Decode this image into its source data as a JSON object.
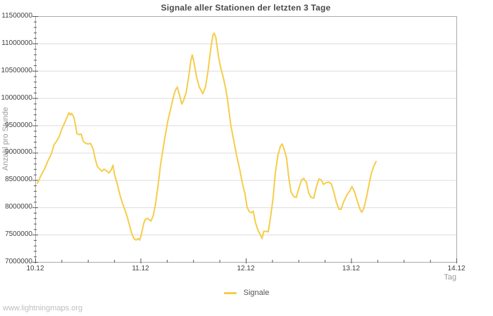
{
  "title": "Signale aller Stationen der letzten 3 Tage",
  "watermark": "www.lightningmaps.org",
  "legend": {
    "position": "bottom-center",
    "items": [
      {
        "label": "Signale",
        "color": "#f5cd4a"
      }
    ]
  },
  "colors": {
    "background": "#ffffff",
    "series": "#f5cd4a",
    "gridline": "#dcdcdc",
    "border": "#aaaaaa",
    "tick": "#555555",
    "tick_label": "#3f3f3f",
    "title": "#4a4a4a",
    "axis_title": "#9a9a9a",
    "watermark": "#bdbdbd"
  },
  "chart_data": {
    "type": "line",
    "title": "Signale aller Stationen der letzten 3 Tage",
    "xlabel": "Tag",
    "ylabel": "Anzahl pro Stunde",
    "x_unit": "hours since 10.12 00:00",
    "xlim": [
      0,
      96
    ],
    "ylim": [
      7000000,
      11500000
    ],
    "grid": "horizontal-only",
    "legend_position": "bottom-center",
    "x_ticks": [
      {
        "pos": 0,
        "label": "10.12"
      },
      {
        "pos": 24,
        "label": "11.12"
      },
      {
        "pos": 48,
        "label": "12.12"
      },
      {
        "pos": 72,
        "label": "13.12"
      },
      {
        "pos": 96,
        "label": "14.12"
      }
    ],
    "x_minor_step": 6,
    "y_major_step": 500000,
    "y_minor_step": 100000,
    "series": [
      {
        "name": "Signale",
        "color": "#f5cd4a",
        "points": [
          [
            0.5,
            8440000
          ],
          [
            1.3,
            8580000
          ],
          [
            2.1,
            8700000
          ],
          [
            2.9,
            8850000
          ],
          [
            3.7,
            8980000
          ],
          [
            4.3,
            9150000
          ],
          [
            4.8,
            9200000
          ],
          [
            5.4,
            9280000
          ],
          [
            6.1,
            9440000
          ],
          [
            6.9,
            9580000
          ],
          [
            7.4,
            9680000
          ],
          [
            7.7,
            9730000
          ],
          [
            8.0,
            9690000
          ],
          [
            8.3,
            9720000
          ],
          [
            8.8,
            9650000
          ],
          [
            9.2,
            9500000
          ],
          [
            9.5,
            9350000
          ],
          [
            10.0,
            9330000
          ],
          [
            10.5,
            9340000
          ],
          [
            10.9,
            9220000
          ],
          [
            11.3,
            9180000
          ],
          [
            12.0,
            9160000
          ],
          [
            12.6,
            9170000
          ],
          [
            13.2,
            9070000
          ],
          [
            13.7,
            8880000
          ],
          [
            14.2,
            8740000
          ],
          [
            14.7,
            8700000
          ],
          [
            15.2,
            8660000
          ],
          [
            15.7,
            8700000
          ],
          [
            16.2,
            8670000
          ],
          [
            16.8,
            8630000
          ],
          [
            17.3,
            8680000
          ],
          [
            17.7,
            8770000
          ],
          [
            18.1,
            8600000
          ],
          [
            18.7,
            8430000
          ],
          [
            19.3,
            8230000
          ],
          [
            19.9,
            8070000
          ],
          [
            20.5,
            7940000
          ],
          [
            21.0,
            7820000
          ],
          [
            21.5,
            7670000
          ],
          [
            22.0,
            7520000
          ],
          [
            22.5,
            7430000
          ],
          [
            23.0,
            7400000
          ],
          [
            23.4,
            7430000
          ],
          [
            23.8,
            7400000
          ],
          [
            24.2,
            7500000
          ],
          [
            24.7,
            7700000
          ],
          [
            25.1,
            7780000
          ],
          [
            25.6,
            7800000
          ],
          [
            26.0,
            7770000
          ],
          [
            26.4,
            7750000
          ],
          [
            26.9,
            7850000
          ],
          [
            27.4,
            8050000
          ],
          [
            28.0,
            8400000
          ],
          [
            28.6,
            8800000
          ],
          [
            29.4,
            9200000
          ],
          [
            30.2,
            9570000
          ],
          [
            31.0,
            9850000
          ],
          [
            31.6,
            10050000
          ],
          [
            32.0,
            10150000
          ],
          [
            32.4,
            10200000
          ],
          [
            33.0,
            10020000
          ],
          [
            33.4,
            9890000
          ],
          [
            33.8,
            9950000
          ],
          [
            34.4,
            10100000
          ],
          [
            35.0,
            10400000
          ],
          [
            35.5,
            10700000
          ],
          [
            35.8,
            10790000
          ],
          [
            36.2,
            10650000
          ],
          [
            36.8,
            10380000
          ],
          [
            37.4,
            10200000
          ],
          [
            38.2,
            10080000
          ],
          [
            38.8,
            10200000
          ],
          [
            39.4,
            10500000
          ],
          [
            40.0,
            10900000
          ],
          [
            40.5,
            11150000
          ],
          [
            40.8,
            11190000
          ],
          [
            41.2,
            11100000
          ],
          [
            41.8,
            10750000
          ],
          [
            42.3,
            10550000
          ],
          [
            42.9,
            10370000
          ],
          [
            43.4,
            10180000
          ],
          [
            43.8,
            10000000
          ],
          [
            44.6,
            9500000
          ],
          [
            45.3,
            9200000
          ],
          [
            45.9,
            8950000
          ],
          [
            46.6,
            8700000
          ],
          [
            47.2,
            8450000
          ],
          [
            47.8,
            8250000
          ],
          [
            48.3,
            8000000
          ],
          [
            48.8,
            7920000
          ],
          [
            49.3,
            7900000
          ],
          [
            49.7,
            7930000
          ],
          [
            50.2,
            7720000
          ],
          [
            50.8,
            7580000
          ],
          [
            51.3,
            7500000
          ],
          [
            51.7,
            7430000
          ],
          [
            52.1,
            7560000
          ],
          [
            52.6,
            7560000
          ],
          [
            53.1,
            7550000
          ],
          [
            53.6,
            7800000
          ],
          [
            54.2,
            8150000
          ],
          [
            54.7,
            8600000
          ],
          [
            55.3,
            8950000
          ],
          [
            55.9,
            9120000
          ],
          [
            56.3,
            9160000
          ],
          [
            56.8,
            9050000
          ],
          [
            57.3,
            8900000
          ],
          [
            57.8,
            8550000
          ],
          [
            58.3,
            8280000
          ],
          [
            58.9,
            8200000
          ],
          [
            59.5,
            8180000
          ],
          [
            60.1,
            8350000
          ],
          [
            60.7,
            8500000
          ],
          [
            61.2,
            8530000
          ],
          [
            61.8,
            8460000
          ],
          [
            62.3,
            8270000
          ],
          [
            62.9,
            8180000
          ],
          [
            63.5,
            8170000
          ],
          [
            64.1,
            8380000
          ],
          [
            64.7,
            8520000
          ],
          [
            65.2,
            8500000
          ],
          [
            65.7,
            8420000
          ],
          [
            66.3,
            8450000
          ],
          [
            66.9,
            8460000
          ],
          [
            67.5,
            8430000
          ],
          [
            68.1,
            8270000
          ],
          [
            68.7,
            8080000
          ],
          [
            69.2,
            7970000
          ],
          [
            69.7,
            7960000
          ],
          [
            70.3,
            8100000
          ],
          [
            71.0,
            8220000
          ],
          [
            71.7,
            8300000
          ],
          [
            72.2,
            8380000
          ],
          [
            72.8,
            8280000
          ],
          [
            73.4,
            8120000
          ],
          [
            74.0,
            7970000
          ],
          [
            74.4,
            7910000
          ],
          [
            74.9,
            7980000
          ],
          [
            75.5,
            8180000
          ],
          [
            76.1,
            8420000
          ],
          [
            76.6,
            8620000
          ],
          [
            77.2,
            8760000
          ],
          [
            77.7,
            8840000
          ]
        ]
      }
    ]
  }
}
